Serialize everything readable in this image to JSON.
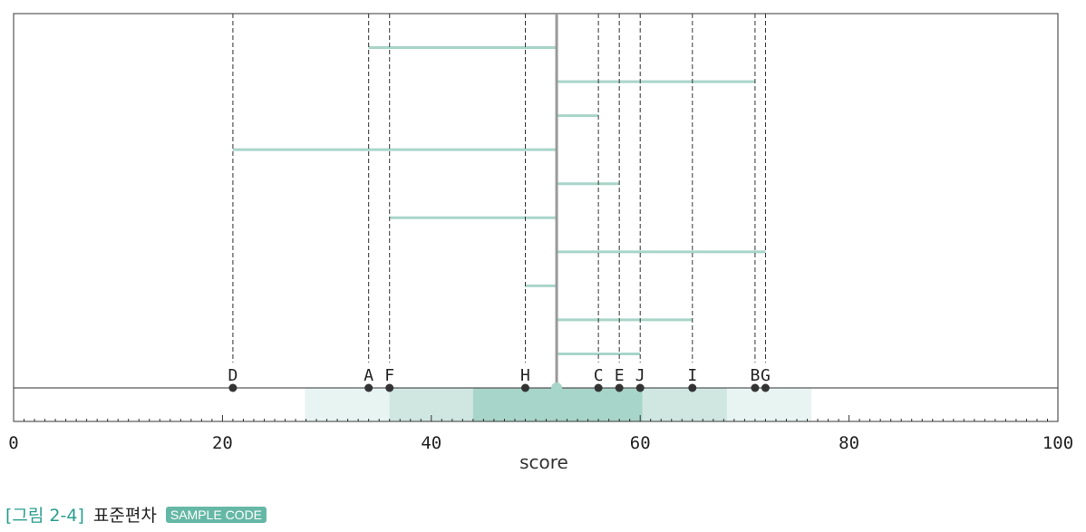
{
  "chart_data": {
    "type": "scatter",
    "xlabel": "score",
    "xlim": [
      0,
      100
    ],
    "x_ticks": [
      0,
      20,
      40,
      60,
      80,
      100
    ],
    "mean": 52,
    "points": [
      {
        "label": "A",
        "x": 34
      },
      {
        "label": "B",
        "x": 71
      },
      {
        "label": "C",
        "x": 56
      },
      {
        "label": "D",
        "x": 21
      },
      {
        "label": "E",
        "x": 58
      },
      {
        "label": "F",
        "x": 36
      },
      {
        "label": "G",
        "x": 72
      },
      {
        "label": "H",
        "x": 49
      },
      {
        "label": "I",
        "x": 65
      },
      {
        "label": "J",
        "x": 60
      }
    ],
    "deviation_order": [
      "A",
      "B",
      "C",
      "D",
      "E",
      "F",
      "G",
      "H",
      "I",
      "J"
    ],
    "std_bands": [
      {
        "from": 44.0,
        "to": 60.2
      },
      {
        "from": 36.0,
        "to": 68.3
      },
      {
        "from": 27.9,
        "to": 76.4
      }
    ],
    "colors": {
      "deviation_line": "#a8d5c9",
      "band_1": "#a8d5c9",
      "band_2": "#cfe7e0",
      "band_3": "#e8f4f1",
      "mean_marker": "#a8d5c9",
      "point": "#333333"
    }
  },
  "caption": {
    "figure_label": "[그림 2-4]",
    "title": "표준편차",
    "badge": "SAMPLE CODE"
  }
}
